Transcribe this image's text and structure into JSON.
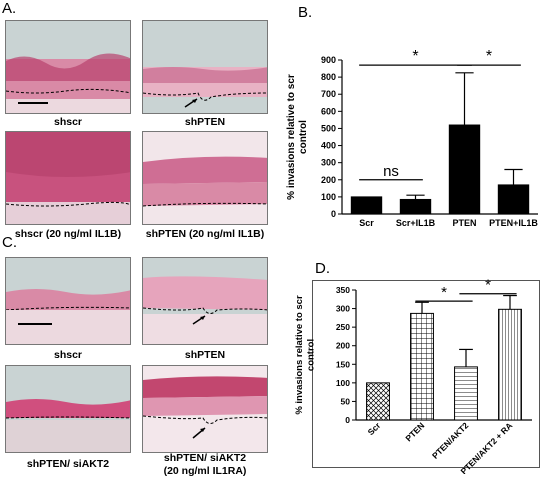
{
  "panels": {
    "A": {
      "letter": "A.",
      "captions": [
        "shscr",
        "shPTEN",
        "shscr (20 ng/ml IL1B)",
        "shPTEN (20 ng/ml IL1B)"
      ]
    },
    "B": {
      "letter": "B."
    },
    "C": {
      "letter": "C.",
      "captions": [
        "shscr",
        "shPTEN",
        "shPTEN/ siAKT2",
        "shPTEN/ siAKT2",
        "(20 ng/ml IL1RA)"
      ]
    },
    "D": {
      "letter": "D."
    }
  },
  "colors": {
    "tissue_pink": "#d98aa6",
    "tissue_dark": "#b8426e",
    "background_bluegray": "#c9d3d3",
    "bar_black": "#000000"
  },
  "chart_data": [
    {
      "type": "bar",
      "panel": "B",
      "ylabel": "% invasions relative to scr control",
      "ylim": [
        0,
        900
      ],
      "yticks": [
        0,
        100,
        200,
        300,
        400,
        500,
        600,
        700,
        800,
        900
      ],
      "categories": [
        "Scr",
        "Scr+IL1B",
        "PTEN",
        "PTEN+IL1B"
      ],
      "values": [
        100,
        85,
        520,
        170
      ],
      "errors": [
        0,
        25,
        305,
        90
      ],
      "annotations": [
        {
          "label": "ns",
          "from": "Scr",
          "to": "Scr+IL1B",
          "y": 200
        },
        {
          "label": "*",
          "from": "Scr",
          "to": "PTEN",
          "y": 870
        },
        {
          "label": "*",
          "from": "PTEN",
          "to": "PTEN+IL1B",
          "y": 870
        }
      ],
      "fill": "#000000"
    },
    {
      "type": "bar",
      "panel": "D",
      "ylabel": "% invasions relative to scr control",
      "ylim": [
        0,
        350
      ],
      "yticks": [
        0,
        50,
        100,
        150,
        200,
        250,
        300,
        350
      ],
      "categories": [
        "Scr",
        "PTEN",
        "PTEN/AKT2",
        "PTEN/AKT2 + RA"
      ],
      "values": [
        100,
        287,
        143,
        298
      ],
      "errors": [
        0,
        30,
        47,
        37
      ],
      "patterns": [
        "crosshatch",
        "grid",
        "horizontal",
        "vertical"
      ],
      "annotations": [
        {
          "label": "*",
          "from": "PTEN",
          "to": "PTEN/AKT2",
          "y": 320
        },
        {
          "label": "*",
          "from": "PTEN/AKT2",
          "to": "PTEN/AKT2 + RA",
          "y": 340
        }
      ]
    }
  ]
}
